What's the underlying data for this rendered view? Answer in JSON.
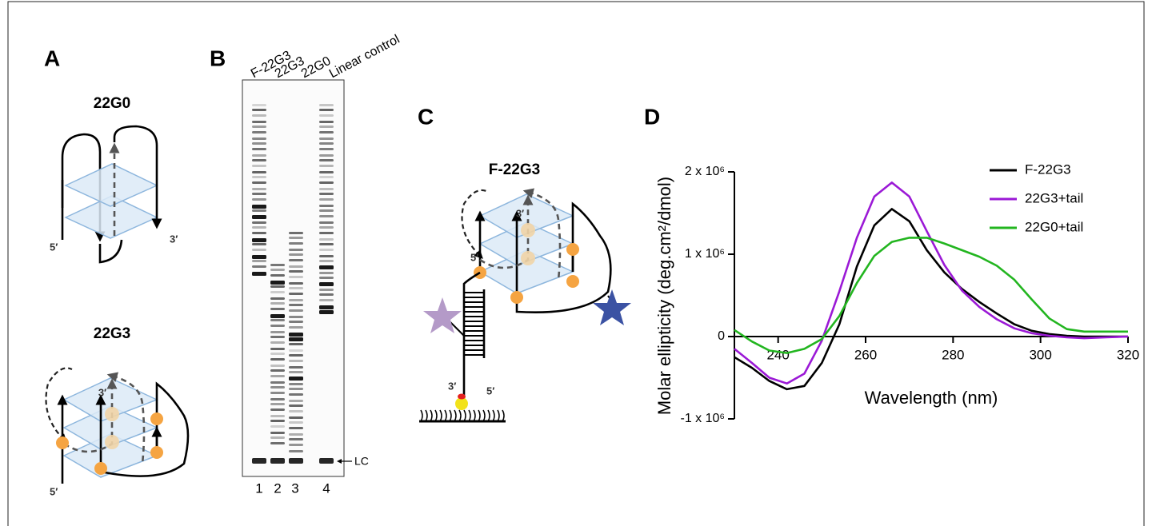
{
  "panels": {
    "A": {
      "label": "A",
      "top": {
        "title": "22G0",
        "five_prime": "5′",
        "three_prime": "3′"
      },
      "bottom": {
        "title": "22G3",
        "five_prime": "5′",
        "three_prime": "3′"
      }
    },
    "B": {
      "label": "B",
      "lanes": [
        "F-22G3",
        "22G3",
        "22G0",
        "Linear control"
      ],
      "lane_numbers": [
        "1",
        "2",
        "3",
        "4"
      ],
      "marker": "LC"
    },
    "C": {
      "label": "C",
      "title": "F-22G3",
      "inner_three_prime": "3′",
      "five_prime": "5′",
      "stem_three_prime": "3′",
      "stem_five_prime": "5′"
    },
    "D": {
      "label": "D"
    }
  },
  "chart_data": {
    "type": "line",
    "x_label": "Wavelength (nm)",
    "y_label": "Molar ellipticity (deg.cm²/dmol)",
    "x": [
      230,
      234,
      238,
      242,
      246,
      250,
      254,
      258,
      262,
      266,
      270,
      274,
      278,
      282,
      286,
      290,
      294,
      298,
      302,
      306,
      310,
      315,
      320
    ],
    "series": [
      {
        "name": "F-22G3",
        "color": "#000000",
        "values": [
          -250000,
          -380000,
          -540000,
          -640000,
          -600000,
          -320000,
          150000,
          850000,
          1350000,
          1550000,
          1400000,
          1050000,
          780000,
          580000,
          420000,
          280000,
          150000,
          70000,
          30000,
          10000,
          0,
          0,
          0
        ]
      },
      {
        "name": "22G3+tail",
        "color": "#9b19d6",
        "values": [
          -150000,
          -320000,
          -500000,
          -570000,
          -450000,
          -50000,
          550000,
          1200000,
          1700000,
          1870000,
          1700000,
          1280000,
          870000,
          560000,
          360000,
          210000,
          100000,
          40000,
          10000,
          -10000,
          -20000,
          -10000,
          0
        ]
      },
      {
        "name": "22G0+tail",
        "color": "#22b51f",
        "values": [
          80000,
          -60000,
          -170000,
          -200000,
          -150000,
          -30000,
          250000,
          650000,
          980000,
          1150000,
          1200000,
          1200000,
          1130000,
          1050000,
          970000,
          860000,
          690000,
          450000,
          220000,
          90000,
          60000,
          60000,
          60000
        ]
      }
    ],
    "xlim": [
      230,
      320
    ],
    "xticks": [
      240,
      260,
      280,
      300,
      320
    ],
    "ylim": [
      -1000000,
      2000000
    ],
    "yticks": [
      {
        "value": -1000000,
        "label": "-1 x 10⁶"
      },
      0,
      {
        "value": 1000000,
        "label": "1 x 10⁶"
      },
      {
        "value": 2000000,
        "label": "2 x 10⁶"
      }
    ],
    "legend": "upper right",
    "grid": false
  }
}
